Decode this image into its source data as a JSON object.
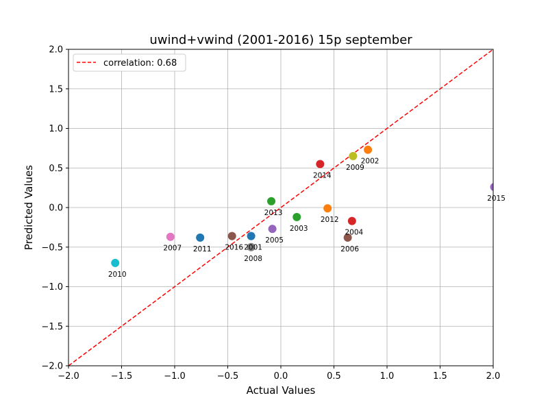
{
  "chart_data": {
    "type": "scatter",
    "title": "uwind+vwind (2001-2016) 15p september",
    "xlabel": "Actual Values",
    "ylabel": "Predicted Values",
    "xlim": [
      -2.0,
      2.0
    ],
    "ylim": [
      -2.0,
      2.0
    ],
    "xticks": [
      "−2.0",
      "−1.5",
      "−1.0",
      "−0.5",
      "0.0",
      "0.5",
      "1.0",
      "1.5",
      "2.0"
    ],
    "yticks": [
      "−2.0",
      "−1.5",
      "−1.0",
      "−0.5",
      "0.0",
      "0.5",
      "1.0",
      "1.5",
      "2.0"
    ],
    "grid": true,
    "legend": {
      "position": "top-left",
      "entries": [
        {
          "label": "correlation: 0.68",
          "color": "#ff0000",
          "style": "dashed"
        }
      ]
    },
    "reference_line": {
      "from": [
        -2.0,
        -2.0
      ],
      "to": [
        2.0,
        2.0
      ],
      "color": "#ff0000",
      "style": "dashed"
    },
    "points": [
      {
        "label": "2001",
        "x": -0.28,
        "y": -0.36,
        "color": "#1f77b4"
      },
      {
        "label": "2002",
        "x": 0.82,
        "y": 0.73,
        "color": "#ff7f0e"
      },
      {
        "label": "2003",
        "x": 0.15,
        "y": -0.12,
        "color": "#2ca02c"
      },
      {
        "label": "2004",
        "x": 0.67,
        "y": -0.17,
        "color": "#d62728"
      },
      {
        "label": "2005",
        "x": -0.08,
        "y": -0.27,
        "color": "#9467bd"
      },
      {
        "label": "2006",
        "x": 0.63,
        "y": -0.38,
        "color": "#8c564b"
      },
      {
        "label": "2007",
        "x": -1.04,
        "y": -0.37,
        "color": "#e377c2"
      },
      {
        "label": "2008",
        "x": -0.28,
        "y": -0.5,
        "color": "#7f7f7f"
      },
      {
        "label": "2009",
        "x": 0.68,
        "y": 0.65,
        "color": "#bcbd22"
      },
      {
        "label": "2010",
        "x": -1.56,
        "y": -0.7,
        "color": "#17becf"
      },
      {
        "label": "2011",
        "x": -0.76,
        "y": -0.38,
        "color": "#1f77b4"
      },
      {
        "label": "2012",
        "x": 0.44,
        "y": -0.01,
        "color": "#ff7f0e"
      },
      {
        "label": "2013",
        "x": -0.09,
        "y": 0.08,
        "color": "#2ca02c"
      },
      {
        "label": "2014",
        "x": 0.37,
        "y": 0.55,
        "color": "#d62728"
      },
      {
        "label": "2015",
        "x": 2.01,
        "y": 0.26,
        "color": "#9467bd"
      },
      {
        "label": "2016",
        "x": -0.46,
        "y": -0.36,
        "color": "#8c564b"
      }
    ]
  }
}
